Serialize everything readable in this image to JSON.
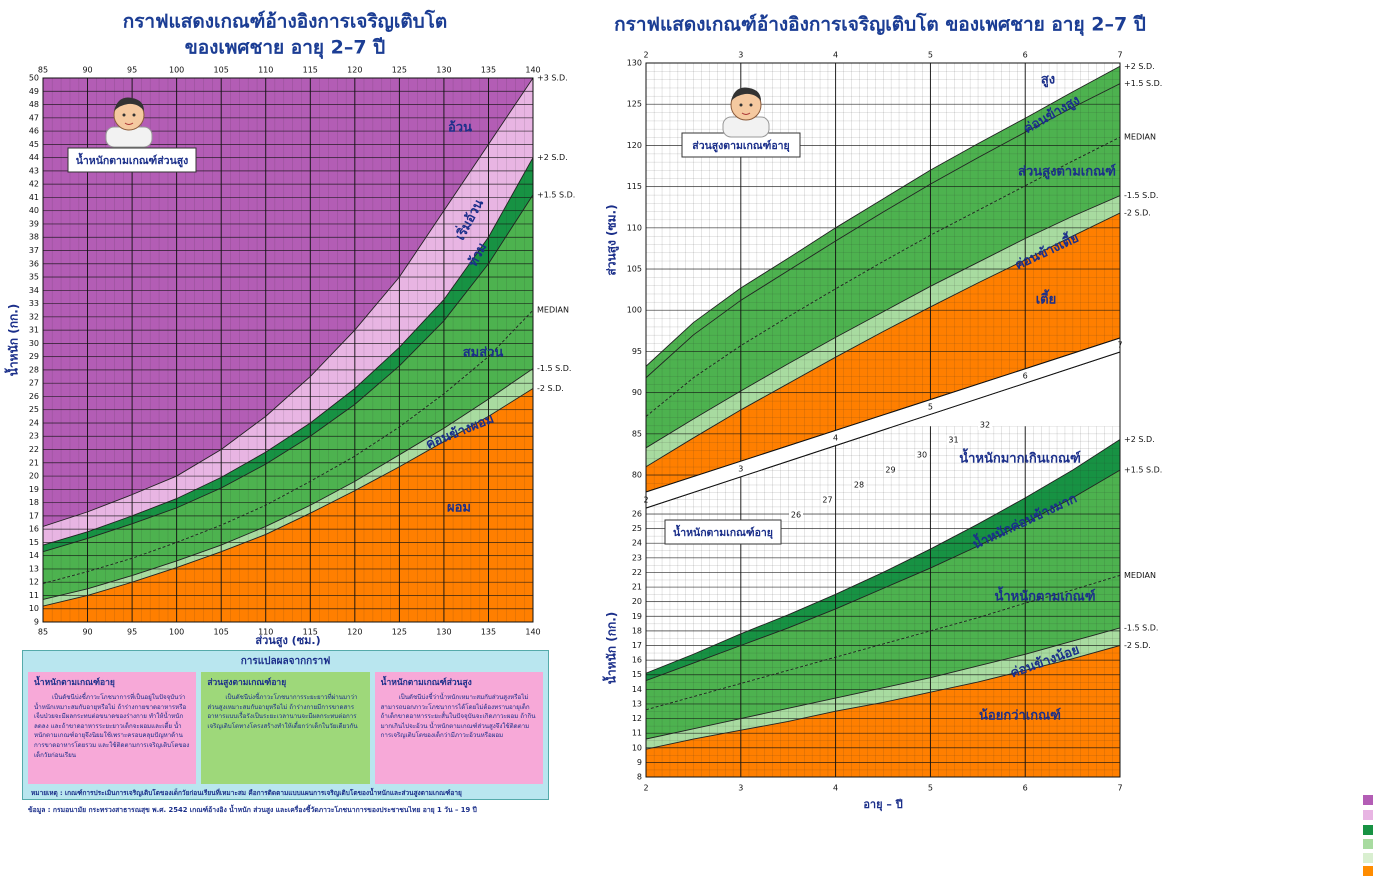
{
  "title_left": [
    "กราฟแสดงเกณฑ์อ้างอิงการเจริญเติบโต",
    "ของเพศชาย อายุ 2–7 ปี"
  ],
  "title_right": "กราฟแสดงเกณฑ์อ้างอิงการเจริญเติบโต ของเพศชาย อายุ 2–7 ปี",
  "chart_data": [
    {
      "type": "line",
      "box_label": "น้ำหนักตามเกณฑ์ส่วนสูง",
      "ylabel": "น้ำหนัก (กก.)",
      "xlabel": "ส่วนสูง (ซม.)",
      "x": [
        85,
        90,
        95,
        100,
        105,
        110,
        115,
        120,
        125,
        130,
        135,
        140
      ],
      "xlim": [
        85,
        140
      ],
      "xticks": [
        85,
        90,
        95,
        100,
        105,
        110,
        115,
        120,
        125,
        130,
        135,
        140
      ],
      "ylim": [
        9,
        50
      ],
      "yticks": [
        9,
        10,
        11,
        12,
        13,
        14,
        15,
        16,
        17,
        18,
        19,
        20,
        21,
        22,
        23,
        24,
        25,
        26,
        27,
        28,
        29,
        30,
        31,
        32,
        33,
        34,
        35,
        36,
        37,
        38,
        39,
        40,
        41,
        42,
        43,
        44,
        45,
        46,
        47,
        48,
        49,
        50
      ],
      "grid": true,
      "band_colors": [
        "#b35db5",
        "#e8b5e3",
        "#179243",
        "#4db24f",
        "#4db24f",
        "#a8dba0",
        "#ff7f00"
      ],
      "series": [
        {
          "name": "+3 S.D.",
          "color": "#222222",
          "style": "solid",
          "values": [
            16.2,
            17.3,
            18.6,
            20.0,
            22.0,
            24.5,
            27.5,
            31.0,
            35.0,
            40.0,
            45.0,
            50.0
          ]
        },
        {
          "name": "+2 S.D.",
          "color": "#222222",
          "style": "solid",
          "values": [
            14.8,
            15.8,
            17.0,
            18.3,
            19.9,
            21.8,
            24.0,
            26.6,
            29.7,
            33.3,
            38.0,
            44.0
          ]
        },
        {
          "name": "+1.5 S.D.",
          "color": "#222222",
          "style": "solid",
          "values": [
            14.3,
            15.3,
            16.4,
            17.6,
            19.1,
            20.9,
            23.0,
            25.4,
            28.3,
            31.7,
            36.0,
            41.2
          ]
        },
        {
          "name": "MEDIAN",
          "color": "#222222",
          "style": "dashed",
          "values": [
            11.9,
            12.8,
            13.8,
            15.0,
            16.3,
            17.8,
            19.6,
            21.5,
            23.7,
            26.2,
            29.0,
            32.5
          ]
        },
        {
          "name": "-1.5 S.D.",
          "color": "#222222",
          "style": "solid",
          "values": [
            10.7,
            11.5,
            12.5,
            13.6,
            14.8,
            16.2,
            17.8,
            19.6,
            21.6,
            23.6,
            25.8,
            28.1
          ]
        },
        {
          "name": "-2 S.D.",
          "color": "#222222",
          "style": "solid",
          "values": [
            10.2,
            11.0,
            12.0,
            13.1,
            14.3,
            15.6,
            17.2,
            18.9,
            20.7,
            22.6,
            24.5,
            26.6
          ]
        }
      ],
      "zone_labels": [
        "อ้วน",
        "เริ่มอ้วน",
        "ท้วม",
        "สมส่วน",
        "ค่อนข้างผอม",
        "ผอม"
      ]
    },
    {
      "type": "line",
      "box_label": "ส่วนสูงตามเกณฑ์อายุ",
      "ylabel": "ส่วนสูง (ซม.)",
      "x": [
        2,
        2.5,
        3,
        3.5,
        4,
        4.5,
        5,
        5.5,
        6,
        6.5,
        7
      ],
      "xlim": [
        2,
        7
      ],
      "xticks": [
        2,
        3,
        4,
        5,
        6,
        7
      ],
      "ylim": [
        78,
        130
      ],
      "yticks": [
        80,
        85,
        90,
        95,
        100,
        105,
        110,
        115,
        120,
        125,
        130
      ],
      "grid": true,
      "band_colors": [
        "#ffffff",
        "#4db24f",
        "#4db24f",
        "#4db24f",
        "#a8dba0",
        "#ff7f00"
      ],
      "series": [
        {
          "name": "+2 S.D.",
          "color": "#222222",
          "style": "solid",
          "values": [
            93.2,
            98.5,
            102.7,
            106.3,
            110.0,
            113.5,
            117.0,
            120.2,
            123.3,
            126.5,
            129.6
          ]
        },
        {
          "name": "+1.5 S.D.",
          "color": "#222222",
          "style": "solid",
          "values": [
            91.8,
            97.0,
            101.2,
            104.8,
            108.4,
            111.9,
            115.3,
            118.5,
            121.6,
            124.6,
            127.5
          ]
        },
        {
          "name": "MEDIAN",
          "color": "#222222",
          "style": "dashed",
          "values": [
            87.1,
            91.8,
            95.7,
            99.2,
            102.6,
            105.9,
            109.1,
            112.1,
            115.1,
            118.1,
            121.0
          ]
        },
        {
          "name": "-1.5 S.D.",
          "color": "#222222",
          "style": "solid",
          "values": [
            83.3,
            86.8,
            90.2,
            93.5,
            96.7,
            99.8,
            102.9,
            105.8,
            108.7,
            111.4,
            113.9
          ]
        },
        {
          "name": "-2 S.D.",
          "color": "#222222",
          "style": "solid",
          "values": [
            81.0,
            84.5,
            87.9,
            91.1,
            94.3,
            97.4,
            100.4,
            103.3,
            106.1,
            109.0,
            111.8
          ]
        }
      ],
      "zone_labels": [
        "สูง",
        "ค่อนข้างสูง",
        "ส่วนสูงตามเกณฑ์",
        "ค่อนข้างเตี้ย",
        "เตี้ย"
      ],
      "strip_labels": [
        2,
        3,
        4,
        5,
        6,
        7
      ]
    },
    {
      "type": "line",
      "box_label": "น้ำหนักตามเกณฑ์อายุ",
      "ylabel": "น้ำหนัก (กก.)",
      "xlabel": "อายุ – ปี",
      "x": [
        2,
        2.5,
        3,
        3.5,
        4,
        4.5,
        5,
        5.5,
        6,
        6.5,
        7
      ],
      "xlim": [
        2,
        7
      ],
      "xticks": [
        2,
        3,
        4,
        5,
        6,
        7
      ],
      "ylim": [
        8,
        32
      ],
      "yticks": [
        8,
        9,
        10,
        11,
        12,
        13,
        14,
        15,
        16,
        17,
        18,
        19,
        20,
        21,
        22,
        23,
        24,
        25,
        26
      ],
      "grid": true,
      "band_colors": [
        "#ffffff",
        "#179243",
        "#4db24f",
        "#4db24f",
        "#a8dba0",
        "#ff7f00"
      ],
      "series": [
        {
          "name": "+2 S.D.",
          "color": "#222222",
          "style": "solid",
          "values": [
            15.1,
            16.4,
            17.8,
            19.1,
            20.5,
            22.0,
            23.6,
            25.3,
            27.1,
            29.0,
            31.1
          ]
        },
        {
          "name": "+1.5 S.D.",
          "color": "#222222",
          "style": "solid",
          "values": [
            14.6,
            15.8,
            17.0,
            18.2,
            19.5,
            20.9,
            22.3,
            23.8,
            25.4,
            27.1,
            29.0
          ]
        },
        {
          "name": "MEDIAN",
          "color": "#222222",
          "style": "dashed",
          "values": [
            12.6,
            13.5,
            14.4,
            15.3,
            16.2,
            17.1,
            18.0,
            18.9,
            19.9,
            20.8,
            21.8
          ]
        },
        {
          "name": "-1.5 S.D.",
          "color": "#222222",
          "style": "solid",
          "values": [
            10.6,
            11.3,
            12.0,
            12.7,
            13.4,
            14.1,
            14.8,
            15.6,
            16.4,
            17.3,
            18.2
          ]
        },
        {
          "name": "-2 S.D.",
          "color": "#222222",
          "style": "solid",
          "values": [
            9.9,
            10.6,
            11.2,
            11.8,
            12.5,
            13.1,
            13.8,
            14.5,
            15.3,
            16.1,
            17.0
          ]
        }
      ],
      "zone_labels": [
        "น้ำหนักมากเกินเกณฑ์",
        "น้ำหนักค่อนข้างมาก",
        "น้ำหนักตามเกณฑ์",
        "ค่อนข้างน้อย",
        "น้อยกว่าเกณฑ์"
      ],
      "strip_labels": [
        26,
        27,
        28,
        29,
        30,
        31,
        32
      ]
    }
  ],
  "interpretation": {
    "title": "การแปลผลจากกราฟ",
    "columns": [
      {
        "heading": "น้ำหนักตามเกณฑ์อายุ",
        "text": "เป็นดัชนีบ่งชี้ภาวะโภชนาการที่เป็นอยู่ในปัจจุบันว่าน้ำหนักเหมาะสมกับอายุหรือไม่ ถ้าร่างกายขาดอาหารหรือเจ็บป่วยจะมีผลกระทบต่อขนาดของร่างกาย ทำให้น้ำหนักลดลง และถ้าขาดอาหารระยะยาวเด็กจะผอมและเตี้ย น้ำหนักตามเกณฑ์อายุจึงนิยมใช้เพราะครอบคลุมปัญหาด้านการขาดอาหารโดยรวม และใช้ติดตามการเจริญเติบโตของเด็กวัยก่อนเรียน"
      },
      {
        "heading": "ส่วนสูงตามเกณฑ์อายุ",
        "text": "เป็นดัชนีบ่งชี้ภาวะโภชนาการระยะยาวที่ผ่านมาว่าส่วนสูงเหมาะสมกับอายุหรือไม่ ถ้าร่างกายมีการขาดสารอาหารแบบเรื้อรังเป็นระยะเวลานานจะมีผลกระทบต่อการเจริญเติบโตทางโครงสร้างทำให้เตี้ยกว่าเด็กในวัยเดียวกัน"
      },
      {
        "heading": "น้ำหนักตามเกณฑ์ส่วนสูง",
        "text": "เป็นดัชนีบ่งชี้ว่าน้ำหนักเหมาะสมกับส่วนสูงหรือไม่ สามารถบอกภาวะโภชนาการได้โดยไม่ต้องทราบอายุเด็ก ถ้าเด็กขาดอาหารระยะสั้นในปัจจุบันจะเกิดภาวะผอม ถ้ากินมากเกินไปจะอ้วน น้ำหนักตามเกณฑ์ส่วนสูงจึงใช้ติดตามการเจริญเติบโตของเด็กว่ามีภาวะอ้วนหรือผอม"
      }
    ],
    "note": "หมายเหตุ : เกณฑ์การประเมินการเจริญเติบโตของเด็กวัยก่อนเรียนที่เหมาะสม คือการติดตามแบบแผนการเจริญเติบโตของน้ำหนักและส่วนสูงตามเกณฑ์อายุ"
  },
  "source": "ข้อมูล : กรมอนามัย กระทรวงสาธารณสุข พ.ศ. 2542 เกณฑ์อ้างอิง น้ำหนัก ส่วนสูง และเครื่องชี้วัดภาวะโภชนาการของประชาชนไทย อายุ 1 วัน – 19 ปี"
}
